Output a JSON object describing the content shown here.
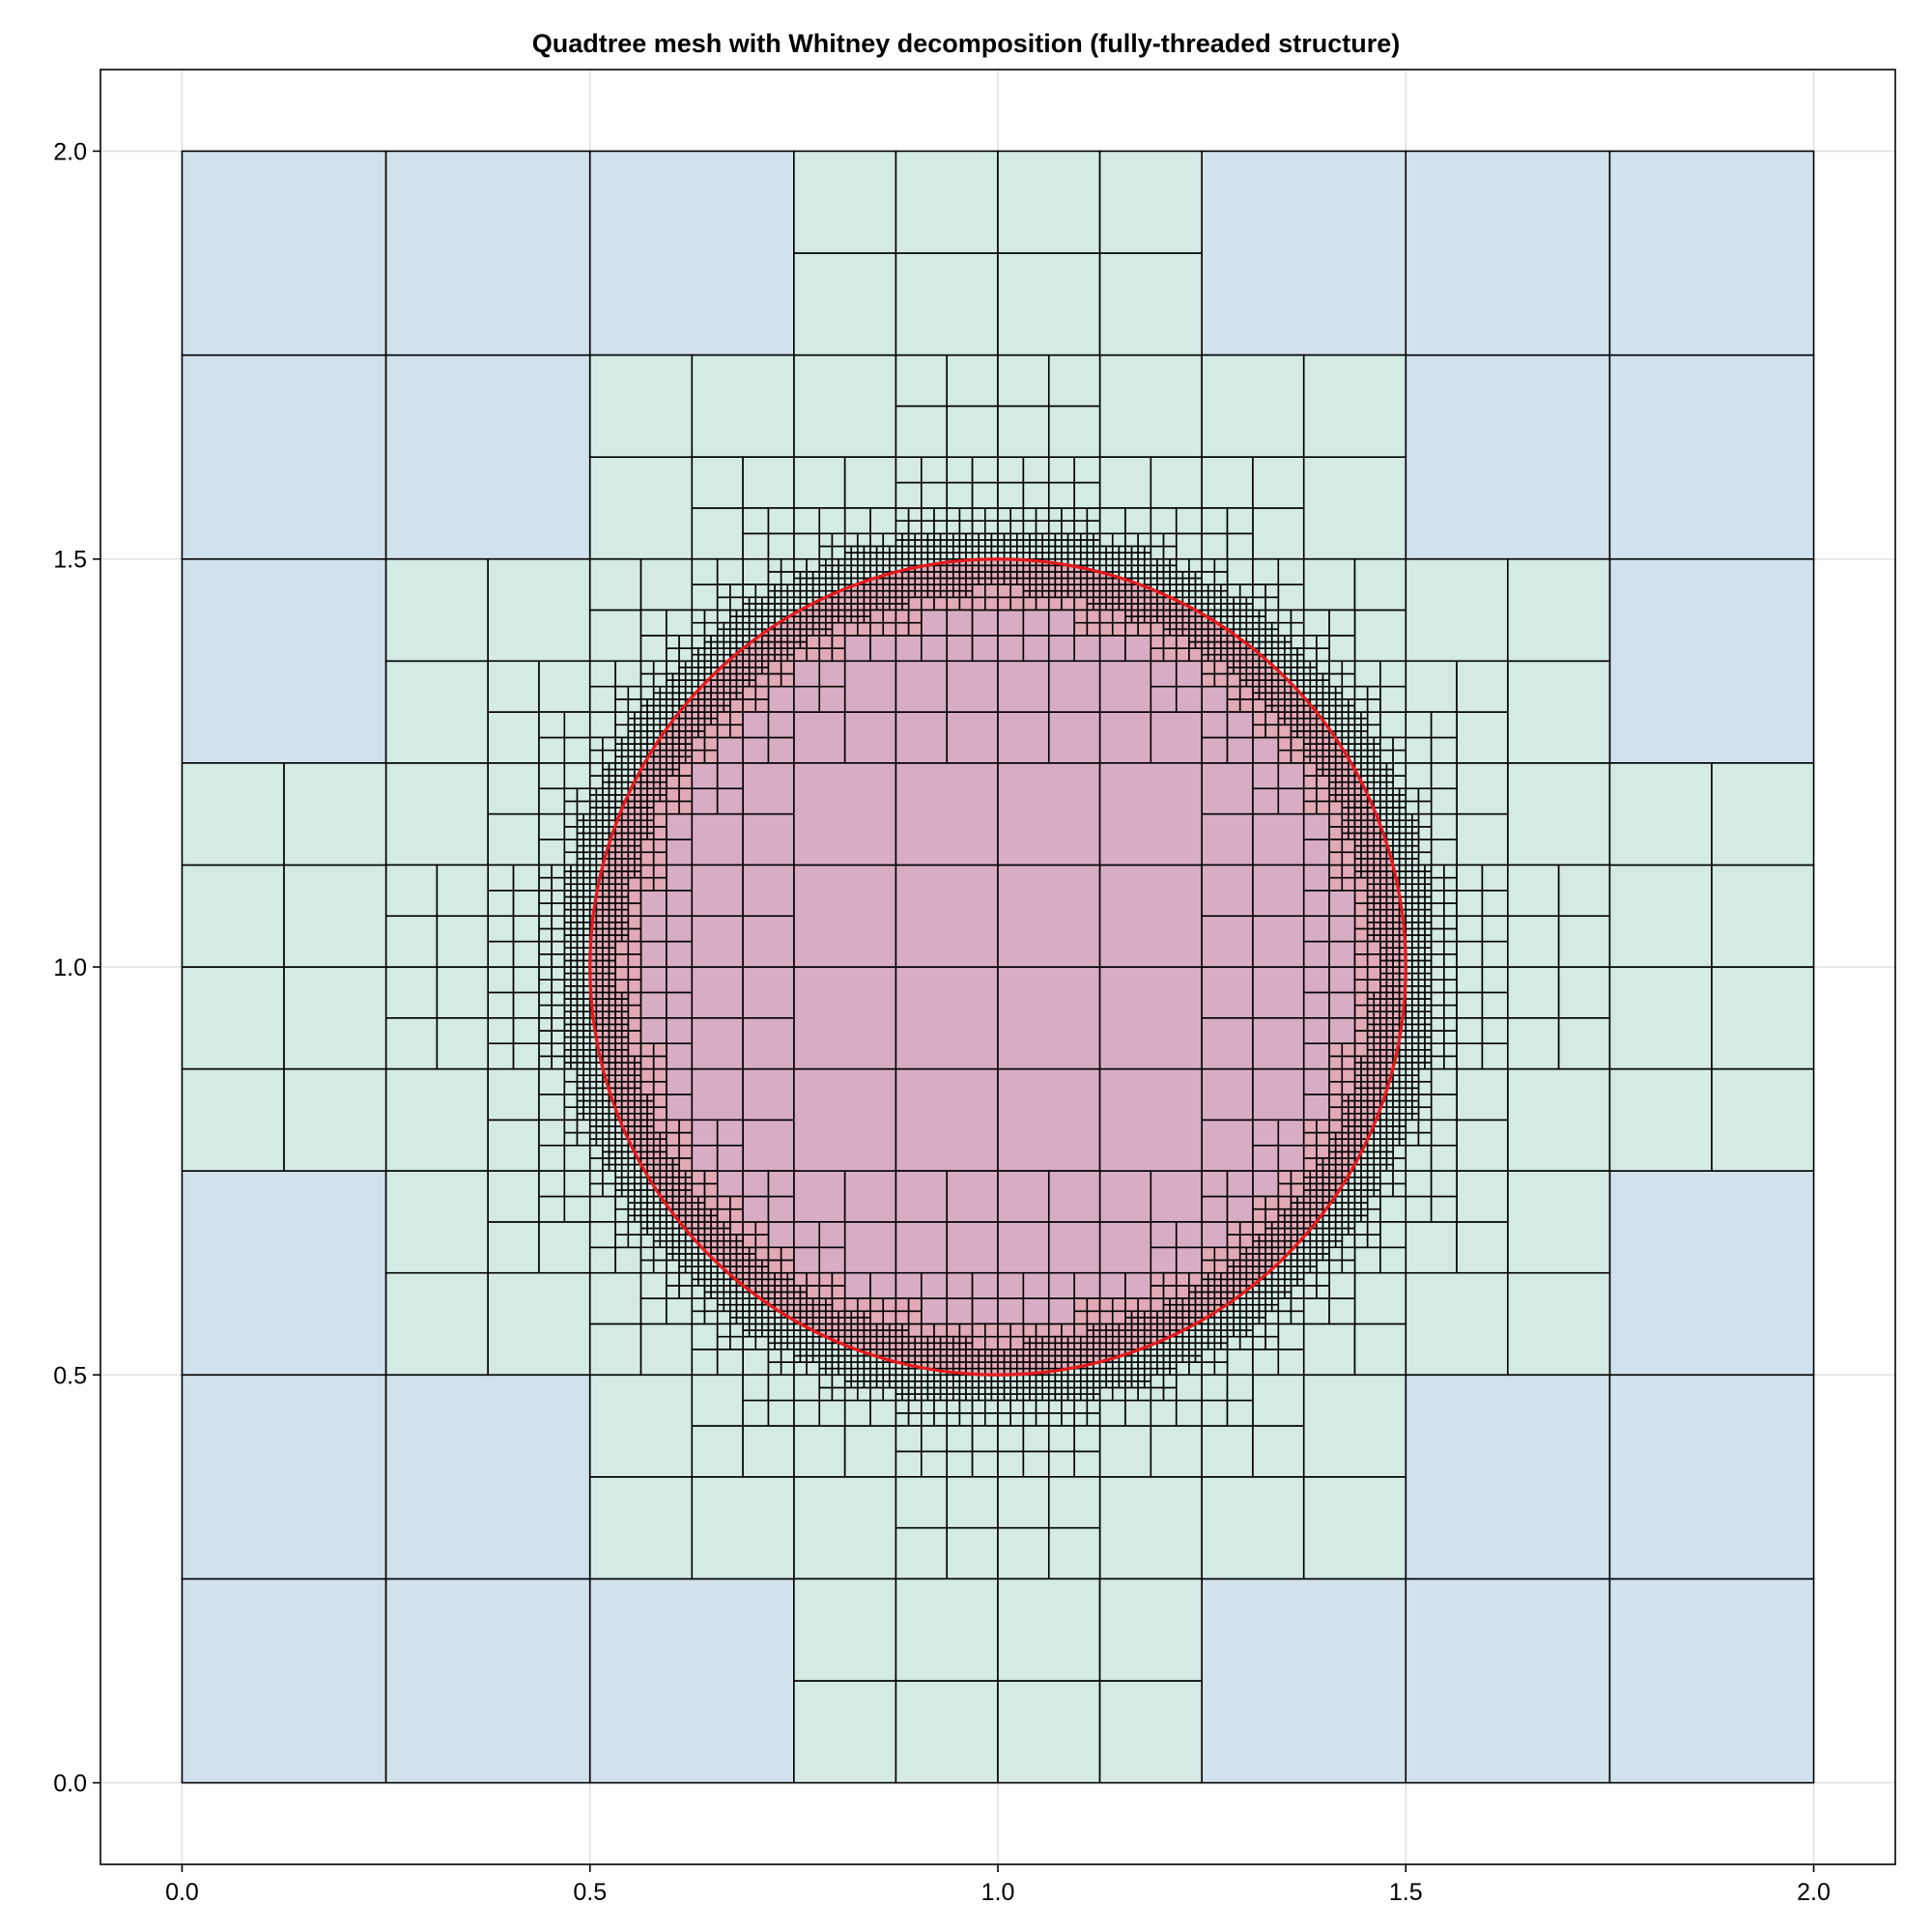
{
  "chart_data": {
    "type": "quadtree-mesh",
    "title": "Quadtree mesh with Whitney decomposition (fully-threaded structure)",
    "xlabel": "",
    "ylabel": "",
    "xlim": [
      -0.1,
      2.1
    ],
    "ylim": [
      -0.1,
      2.1
    ],
    "xticks": [
      0.0,
      0.5,
      1.0,
      1.5,
      2.0
    ],
    "yticks": [
      0.0,
      0.5,
      1.0,
      1.5,
      2.0
    ],
    "xtick_labels": [
      "0.0",
      "0.5",
      "1.0",
      "1.5",
      "2.0"
    ],
    "ytick_labels": [
      "0.0",
      "0.5",
      "1.0",
      "1.5",
      "2.0"
    ],
    "grid": true,
    "domain": {
      "xmin": 0.0,
      "xmax": 2.0,
      "ymin": 0.0,
      "ymax": 2.0
    },
    "circle": {
      "cx": 1.0,
      "cy": 1.0,
      "r": 0.5,
      "color": "#e31a1c"
    },
    "root_cell_size": 0.25,
    "max_depth": 5,
    "refinement": "cells within 0.03 of the circle boundary are refined to max depth; neighbouring cells are balanced 2:1",
    "colors": {
      "outside_coarse": "#d1e2ed",
      "outside_near": "#d3eae5",
      "inside_coarse": "#c7abd0",
      "inside_near": "#d8adc4",
      "inside_boundary": "#e1aab5",
      "cell_edge": "#000000",
      "grid": "#e0e0e0",
      "axis": "#000000"
    }
  }
}
